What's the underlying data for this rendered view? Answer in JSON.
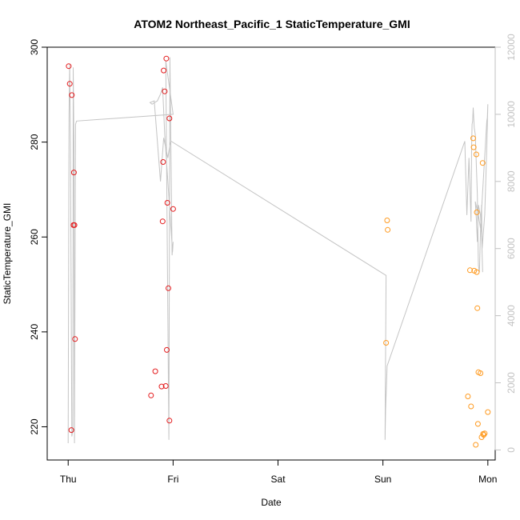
{
  "chart_data": {
    "type": "scatter",
    "title": "ATOM2 Northeast_Pacific_1 StaticTemperature_GMI",
    "xlabel": "Date",
    "ylabel": "StaticTemperature_GMI",
    "x_ticks": [
      "Thu",
      "Fri",
      "Sat",
      "Sun",
      "Mon"
    ],
    "x_tick_values": [
      0,
      1,
      2,
      3,
      4
    ],
    "xlim": [
      -0.2,
      4.07
    ],
    "ylim": [
      213,
      300
    ],
    "y_ticks": [
      220,
      240,
      260,
      280,
      300
    ],
    "y2lim": [
      -300,
      12000
    ],
    "y2_ticks": [
      0,
      2000,
      4000,
      6000,
      8000,
      10000,
      12000
    ],
    "grid": false,
    "legend": "none",
    "colors": {
      "early": "#e41a1c",
      "late": "#ff9a1f",
      "trace": "#c4c4c4",
      "right_axis": "#c2c2c2"
    },
    "series": [
      {
        "color": "#e41a1c",
        "x": [
          0.005,
          0.015,
          0.035,
          0.055,
          0.06,
          0.05,
          0.065,
          0.03,
          0.91,
          0.935,
          0.965,
          0.92,
          0.905,
          0.945,
          0.9,
          0.93,
          0.955,
          1.0,
          0.965,
          0.79,
          0.89,
          0.94,
          0.83
        ],
        "y": [
          296.0,
          292.3,
          289.9,
          273.6,
          262.5,
          262.5,
          238.5,
          219.3,
          295.1,
          297.6,
          285.0,
          290.7,
          275.8,
          267.2,
          263.3,
          228.6,
          249.2,
          265.9,
          221.3,
          226.6,
          228.5,
          236.2,
          231.7
        ]
      },
      {
        "color": "#ff9a1f",
        "x": [
          3.04,
          3.045,
          3.03,
          3.83,
          3.86,
          3.865,
          3.89,
          3.895,
          3.895,
          3.87,
          3.9,
          3.91,
          3.93,
          3.95,
          3.96,
          3.97,
          3.81,
          3.84,
          3.905,
          3.94,
          3.955,
          3.885,
          4.0
        ],
        "y": [
          263.5,
          261.5,
          237.7,
          253.0,
          280.8,
          278.9,
          277.4,
          265.2,
          252.6,
          252.9,
          245.0,
          231.5,
          231.3,
          275.6,
          218.3,
          218.6,
          226.4,
          224.3,
          220.6,
          217.8,
          218.5,
          216.2,
          223.1
        ]
      }
    ],
    "trace_y2": {
      "x": [
        0.0,
        0.008,
        0.014,
        0.022,
        0.035,
        0.045,
        0.048,
        0.055,
        0.06,
        0.07,
        0.08,
        1.0,
        0.93,
        0.96,
        0.97,
        0.99,
        1.0,
        0.995,
        0.92,
        0.9,
        0.88,
        0.85,
        0.8,
        0.78,
        0.82,
        0.88,
        0.91,
        0.93,
        0.95,
        0.97,
        0.98,
        3.03,
        3.02,
        3.025,
        3.04,
        3.78,
        3.8,
        3.82,
        3.83,
        3.84,
        3.845,
        3.85,
        3.855,
        3.86,
        3.87,
        3.88,
        3.9,
        3.91,
        3.92,
        3.93,
        3.94,
        3.945,
        3.95,
        3.97,
        3.99,
        4.0,
        3.995,
        3.99,
        3.93,
        3.91,
        3.88,
        3.89,
        3.9,
        3.91,
        3.93,
        3.94,
        3.95
      ],
      "y": [
        200,
        10000,
        11500,
        9000,
        400,
        600,
        11400,
        9200,
        200,
        9700,
        9800,
        10000,
        11600,
        300,
        11700,
        5800,
        6200,
        5900,
        9400,
        10800,
        10600,
        10400,
        10300,
        10350,
        10400,
        8000,
        9300,
        9000,
        8700,
        9100,
        9200,
        5200,
        300,
        1200,
        2500,
        9200,
        7000,
        8700,
        7800,
        6800,
        9000,
        9700,
        9800,
        10200,
        9600,
        9400,
        7600,
        5500,
        5300,
        6500,
        7300,
        6000,
        6200,
        7000,
        9000,
        10300,
        9900,
        9800,
        6600,
        7000,
        7400,
        6900,
        6200,
        7300,
        7000,
        6400,
        5300
      ]
    }
  }
}
